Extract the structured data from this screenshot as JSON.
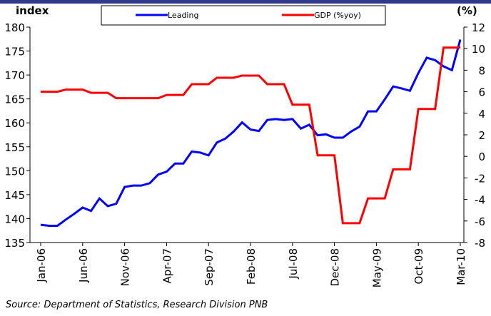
{
  "chart_data": {
    "type": "line",
    "y_label": "index",
    "y2_label": "(%)",
    "source": "Source: Department of Statistics, Research Division PNB",
    "categories": [
      "Jan-06",
      null,
      null,
      null,
      null,
      "Jun-06",
      null,
      null,
      null,
      null,
      "Nov-06",
      null,
      null,
      null,
      null,
      "Apr-07",
      null,
      null,
      null,
      null,
      "Sep-07",
      null,
      null,
      null,
      null,
      "Feb-08",
      null,
      null,
      null,
      null,
      "Jul-08",
      null,
      null,
      null,
      null,
      "Dec-08",
      null,
      null,
      null,
      null,
      "May-09",
      null,
      null,
      null,
      null,
      "Oct-09",
      null,
      null,
      null,
      null,
      "Mar-10"
    ],
    "series": [
      {
        "name": "Leading",
        "color": "#0000ff",
        "axis": "y",
        "values": [
          138.7,
          138.5,
          138.5,
          139.8,
          141.0,
          142.3,
          141.6,
          144.2,
          142.6,
          143.1,
          146.6,
          146.9,
          146.9,
          147.4,
          149.2,
          149.8,
          151.5,
          151.5,
          154.0,
          153.8,
          153.2,
          155.9,
          156.7,
          158.2,
          160.1,
          158.6,
          158.3,
          160.6,
          160.8,
          160.6,
          160.8,
          158.8,
          159.6,
          157.4,
          157.6,
          156.9,
          156.9,
          158.2,
          159.2,
          162.4,
          162.4,
          164.9,
          167.6,
          167.2,
          166.7,
          170.4,
          173.6,
          173.1,
          171.8,
          171.0,
          177.4
        ]
      },
      {
        "name": "GDP (%yoy)",
        "color": "#ff0000",
        "axis": "y2",
        "values": [
          6.0,
          6.0,
          6.0,
          6.2,
          6.2,
          6.2,
          5.9,
          5.9,
          5.9,
          5.4,
          5.4,
          5.4,
          5.4,
          5.4,
          5.4,
          5.7,
          5.7,
          5.7,
          6.7,
          6.7,
          6.7,
          7.3,
          7.3,
          7.3,
          7.5,
          7.5,
          7.5,
          6.7,
          6.7,
          6.7,
          4.8,
          4.8,
          4.8,
          0.1,
          0.1,
          0.1,
          -6.2,
          -6.2,
          -6.2,
          -3.9,
          -3.9,
          -3.9,
          -1.2,
          -1.2,
          -1.2,
          4.4,
          4.4,
          4.4,
          10.1,
          10.1,
          10.1
        ]
      }
    ],
    "ylim": [
      135,
      180
    ],
    "yticks": [
      135,
      140,
      145,
      150,
      155,
      160,
      165,
      170,
      175,
      180
    ],
    "y2lim": [
      -8,
      12
    ],
    "y2ticks": [
      -8,
      -6,
      -4,
      -2,
      0,
      2,
      4,
      6,
      8,
      10,
      12
    ],
    "legend": "top"
  }
}
